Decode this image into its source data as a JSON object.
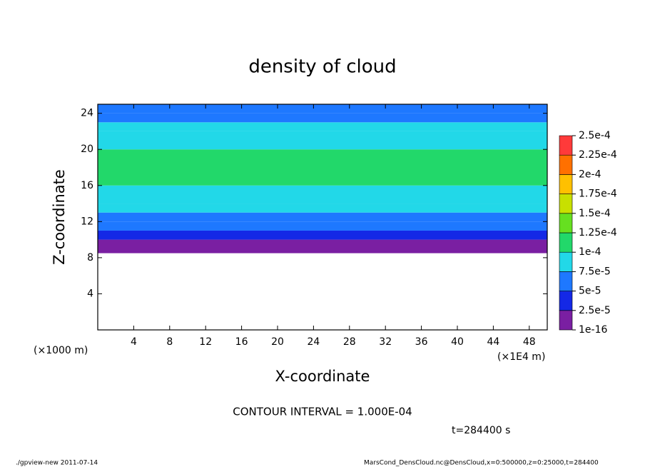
{
  "chart_data": {
    "type": "contour",
    "title": "density of cloud",
    "x_label": "X-coordinate",
    "y_label": "Z-coordinate",
    "x_unit": "(×1E4 m)",
    "y_unit": "(×1000 m)",
    "xlim": [
      0,
      50
    ],
    "xticks": [
      4,
      8,
      12,
      16,
      20,
      24,
      28,
      32,
      36,
      40,
      44,
      48
    ],
    "ylim": [
      0,
      25
    ],
    "yticks": [
      4,
      8,
      12,
      16,
      20,
      24
    ],
    "profile": {
      "z_bins": [
        8.5,
        10,
        11,
        12,
        13,
        14,
        16,
        20,
        22,
        23,
        24,
        25
      ],
      "values": [
        1e-05,
        3e-05,
        5e-05,
        6.5e-05,
        8e-05,
        9.5e-05,
        0.00011,
        9.5e-05,
        8e-05,
        7e-05,
        6e-05
      ]
    },
    "colorbar": {
      "levels": [
        {
          "value": 1e-16,
          "label": "1e-16"
        },
        {
          "value": 2.5e-05,
          "label": "2.5e-5"
        },
        {
          "value": 5e-05,
          "label": "5e-5"
        },
        {
          "value": 7.5e-05,
          "label": "7.5e-5"
        },
        {
          "value": 0.0001,
          "label": "1e-4"
        },
        {
          "value": 0.000125,
          "label": "1.25e-4"
        },
        {
          "value": 0.00015,
          "label": "1.5e-4"
        },
        {
          "value": 0.000175,
          "label": "1.75e-4"
        },
        {
          "value": 0.0002,
          "label": "2e-4"
        },
        {
          "value": 0.000225,
          "label": "2.25e-4"
        },
        {
          "value": 0.00025,
          "label": "2.5e-4"
        }
      ],
      "colors": [
        "#7a1fa2",
        "#1428e6",
        "#1e78ff",
        "#22d8e8",
        "#22d86a",
        "#66e020",
        "#c8e000",
        "#ffc000",
        "#ff7000",
        "#ff3a3a"
      ]
    },
    "contour_interval": "CONTOUR INTERVAL = 1.000E-04",
    "time_label": "t=284400 s",
    "footer_left": "./gpview-new  2011-07-14",
    "footer_right": "MarsCond_DensCloud.nc@DensCloud,x=0:500000,z=0:25000,t=284400"
  }
}
